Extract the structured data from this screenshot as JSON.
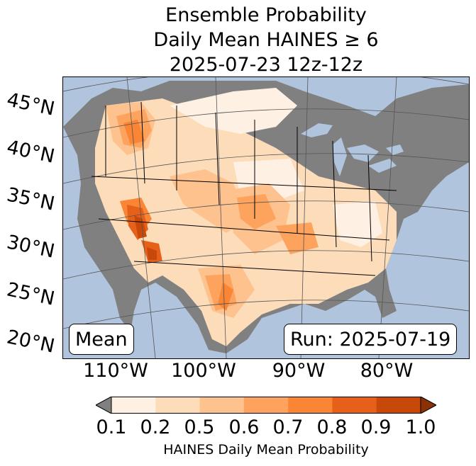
{
  "title": {
    "line1": "Ensemble Probability",
    "line2": "Daily Mean HAINES ≥ 6",
    "line3": "2025-07-23 12z-12z"
  },
  "map": {
    "lat_labels": [
      "45°N",
      "40°N",
      "35°N",
      "30°N",
      "25°N",
      "20°N"
    ],
    "lon_labels": [
      "110°W",
      "100°W",
      "90°W",
      "80°W"
    ],
    "colors": {
      "ocean": "#b0c4de",
      "land_low": "#808080",
      "grid": "#555555"
    }
  },
  "annotations": {
    "stat": "Mean",
    "run": "Run: 2025-07-19"
  },
  "colorbar": {
    "ticks": [
      "0.1",
      "0.2",
      "0.5",
      "0.6",
      "0.7",
      "0.8",
      "0.9",
      "1.0"
    ],
    "colors": [
      "#fef1e4",
      "#fddcba",
      "#fdc28e",
      "#fda35d",
      "#f98535",
      "#e7601a",
      "#c8480a"
    ],
    "under_color": "#808080",
    "over_color": "#8a3205",
    "label": "HAINES Daily Mean Probability"
  }
}
